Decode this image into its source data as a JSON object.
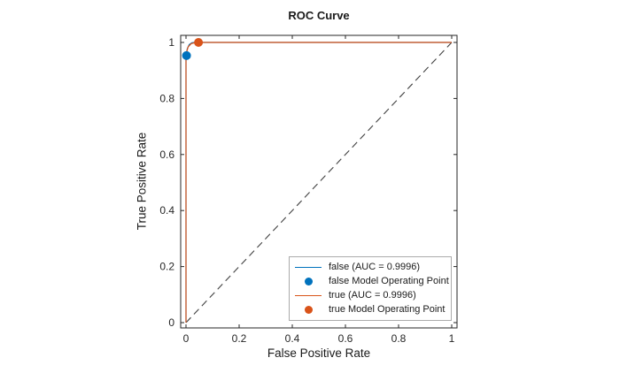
{
  "chart_data": {
    "type": "line",
    "title": "ROC Curve",
    "xlabel": "False Positive Rate",
    "ylabel": "True Positive Rate",
    "xlim": [
      0,
      1
    ],
    "ylim": [
      0,
      1
    ],
    "grid": false,
    "axis_color": "#262626",
    "xticks": [
      "0",
      "0.2",
      "0.4",
      "0.6",
      "0.8",
      "1"
    ],
    "xtick_values": [
      0,
      0.2,
      0.4,
      0.6,
      0.8,
      1
    ],
    "yticks": [
      "0",
      "0.2",
      "0.4",
      "0.6",
      "0.8",
      "1"
    ],
    "ytick_values": [
      0,
      0.2,
      0.4,
      0.6,
      0.8,
      1
    ],
    "series": [
      {
        "name": "false (AUC = 0.9996)",
        "color": "#0072BD",
        "points": [
          [
            0,
            0
          ],
          [
            0,
            0.953
          ],
          [
            0.005,
            0.978
          ],
          [
            0.012,
            0.992
          ],
          [
            0.022,
            0.999
          ],
          [
            0.033,
            1
          ],
          [
            1,
            1
          ]
        ]
      },
      {
        "name": "true (AUC = 0.9996)",
        "color": "#D95319",
        "points": [
          [
            0,
            0
          ],
          [
            0,
            0.958
          ],
          [
            0.008,
            0.984
          ],
          [
            0.02,
            0.996
          ],
          [
            0.035,
            0.999
          ],
          [
            0.047,
            1
          ],
          [
            1,
            1
          ]
        ]
      }
    ],
    "operating_points": [
      {
        "name": "false Model Operating Point",
        "color": "#0072BD",
        "x": 0.002,
        "y": 0.953
      },
      {
        "name": "true Model Operating Point",
        "color": "#D95319",
        "x": 0.047,
        "y": 1
      }
    ],
    "reference_line": {
      "from": [
        0,
        0
      ],
      "to": [
        1,
        1
      ],
      "color": "#404040",
      "dash": "8 5"
    },
    "legend": {
      "position": "southeast",
      "entries": [
        {
          "label": "false (AUC = 0.9996)",
          "type": "line",
          "color": "#0072BD"
        },
        {
          "label": "false Model Operating Point",
          "type": "marker",
          "color": "#0072BD"
        },
        {
          "label": "true (AUC = 0.9996)",
          "type": "line",
          "color": "#D95319"
        },
        {
          "label": "true Model Operating Point",
          "type": "marker",
          "color": "#D95319"
        }
      ]
    }
  }
}
